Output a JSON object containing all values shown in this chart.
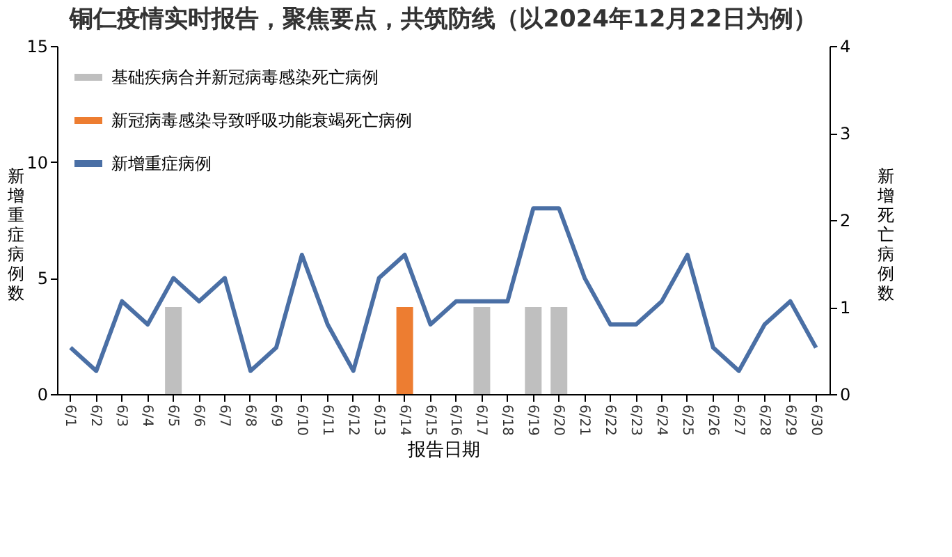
{
  "chart_data": {
    "type": "bar",
    "title": "铜仁疫情实时报告，聚焦要点，共筑防线（以2024年12月22日为例）",
    "xlabel": "报告日期",
    "ylabel": "新增重症病例数",
    "y2label": "新增死亡病例数",
    "categories": [
      "6/1",
      "6/2",
      "6/3",
      "6/4",
      "6/5",
      "6/6",
      "6/7",
      "6/8",
      "6/9",
      "6/10",
      "6/11",
      "6/12",
      "6/13",
      "6/14",
      "6/15",
      "6/16",
      "6/17",
      "6/18",
      "6/19",
      "6/20",
      "6/21",
      "6/22",
      "6/23",
      "6/24",
      "6/25",
      "6/26",
      "6/27",
      "6/28",
      "6/29",
      "6/30"
    ],
    "series": [
      {
        "name": "基础疾病合并新冠病毒感染死亡病例",
        "color": "#bfbfbf",
        "axis": "y2",
        "values": [
          null,
          null,
          null,
          null,
          1,
          null,
          null,
          null,
          null,
          null,
          null,
          null,
          null,
          null,
          null,
          null,
          1,
          null,
          1,
          1,
          null,
          null,
          null,
          null,
          null,
          null,
          null,
          null,
          null,
          null
        ]
      },
      {
        "name": "新冠病毒感染导致呼吸功能衰竭死亡病例",
        "color": "#ed7d31",
        "axis": "y2",
        "values": [
          null,
          null,
          null,
          null,
          null,
          null,
          null,
          null,
          null,
          null,
          null,
          null,
          null,
          1,
          null,
          null,
          null,
          null,
          null,
          null,
          null,
          null,
          null,
          null,
          null,
          null,
          null,
          null,
          null,
          null
        ]
      },
      {
        "name": "新增重症病例",
        "type": "line",
        "color": "#4a6fa5",
        "values": [
          2,
          1,
          4,
          3,
          5,
          4,
          5,
          1,
          2,
          6,
          3,
          1,
          5,
          6,
          3,
          4,
          4,
          4,
          8,
          8,
          5,
          3,
          3,
          4,
          6,
          2,
          1,
          3,
          4,
          2
        ]
      }
    ],
    "ylim": [
      0,
      15
    ],
    "yticks": [
      0,
      5,
      10,
      15
    ],
    "y2lim": [
      0,
      4
    ],
    "y2ticks": [
      0,
      1,
      2,
      3,
      4
    ],
    "legend": "top left",
    "grid": false,
    "line_style": "solid",
    "marker": "none"
  }
}
